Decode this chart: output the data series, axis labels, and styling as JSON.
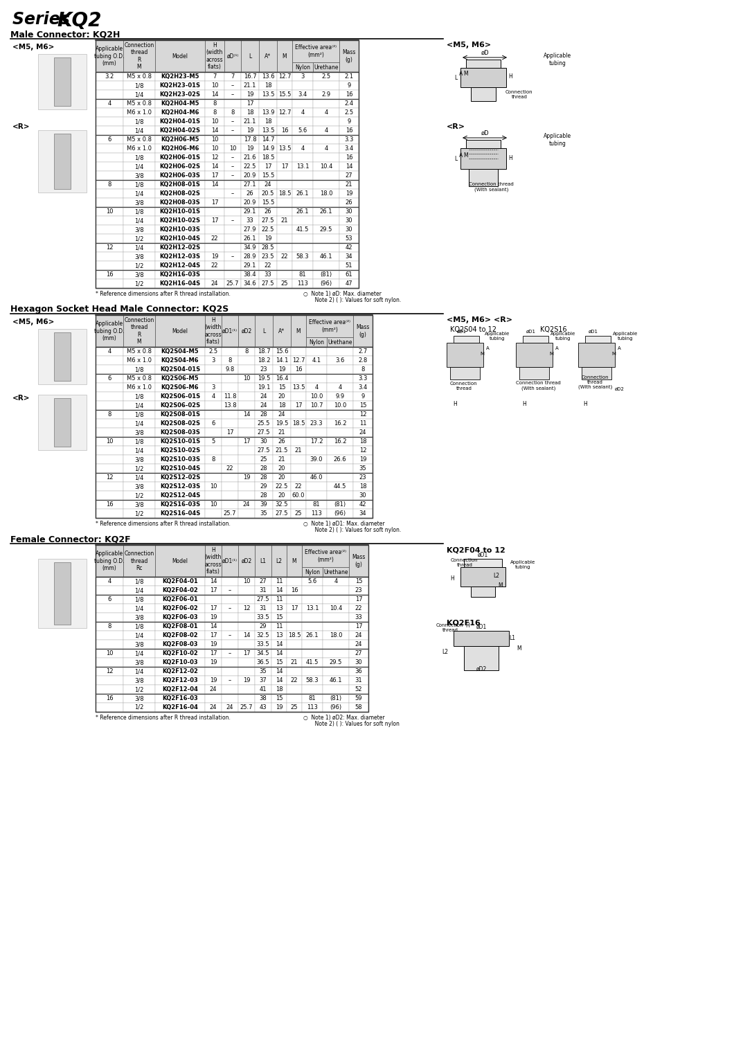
{
  "title_regular": "Series ",
  "title_bold": "KQ2",
  "sections": [
    "Male Connector: KQ2H",
    "Hexagon Socket Head Male Connector: KQ2S",
    "Female Connector: KQ2F"
  ],
  "kq2h_rows": [
    [
      "3.2",
      "M5 x 0.8",
      "KQ2H23-M5",
      "7",
      "7",
      "16.7",
      "13.6",
      "12.7",
      "3",
      "2.5",
      "2.1"
    ],
    [
      "",
      "1/8",
      "KQ2H23-01S",
      "10",
      "–",
      "21.1",
      "18",
      "",
      "",
      "",
      "9"
    ],
    [
      "",
      "1/4",
      "KQ2H23-02S",
      "14",
      "–",
      "19",
      "13.5",
      "15.5",
      "3.4",
      "2.9",
      "16"
    ],
    [
      "4",
      "M5 x 0.8",
      "KQ2H04-M5",
      "8",
      "",
      "17",
      "",
      "",
      "",
      "",
      "2.4"
    ],
    [
      "",
      "M6 x 1.0",
      "KQ2H04-M6",
      "8",
      "8",
      "18",
      "13.9",
      "12.7",
      "4",
      "4",
      "2.5"
    ],
    [
      "",
      "1/8",
      "KQ2H04-01S",
      "10",
      "–",
      "21.1",
      "18",
      "",
      "",
      "",
      "9"
    ],
    [
      "",
      "1/4",
      "KQ2H04-02S",
      "14",
      "–",
      "19",
      "13.5",
      "16",
      "5.6",
      "4",
      "16"
    ],
    [
      "6",
      "M5 x 0.8",
      "KQ2H06-M5",
      "10",
      "",
      "17.8",
      "14.7",
      "",
      "",
      "",
      "3.3"
    ],
    [
      "",
      "M6 x 1.0",
      "KQ2H06-M6",
      "10",
      "10",
      "19",
      "14.9",
      "13.5",
      "4",
      "4",
      "3.4"
    ],
    [
      "",
      "1/8",
      "KQ2H06-01S",
      "12",
      "–",
      "21.6",
      "18.5",
      "",
      "",
      "",
      "16"
    ],
    [
      "",
      "1/4",
      "KQ2H06-02S",
      "14",
      "–",
      "22.5",
      "17",
      "17",
      "13.1",
      "10.4",
      "14"
    ],
    [
      "",
      "3/8",
      "KQ2H06-03S",
      "17",
      "–",
      "20.9",
      "15.5",
      "",
      "",
      "",
      "27"
    ],
    [
      "8",
      "1/8",
      "KQ2H08-01S",
      "14",
      "",
      "27.1",
      "24",
      "",
      "",
      "",
      "21"
    ],
    [
      "",
      "1/4",
      "KQ2H08-02S",
      "",
      "–",
      "26",
      "20.5",
      "18.5",
      "26.1",
      "18.0",
      "19"
    ],
    [
      "",
      "3/8",
      "KQ2H08-03S",
      "17",
      "",
      "20.9",
      "15.5",
      "",
      "",
      "",
      "26"
    ],
    [
      "10",
      "1/8",
      "KQ2H10-01S",
      "",
      "",
      "29.1",
      "26",
      "",
      "26.1",
      "26.1",
      "30"
    ],
    [
      "",
      "1/4",
      "KQ2H10-02S",
      "17",
      "–",
      "33",
      "27.5",
      "21",
      "",
      "",
      "30"
    ],
    [
      "",
      "3/8",
      "KQ2H10-03S",
      "",
      "",
      "27.9",
      "22.5",
      "",
      "41.5",
      "29.5",
      "30"
    ],
    [
      "",
      "1/2",
      "KQ2H10-04S",
      "22",
      "",
      "26.1",
      "19",
      "",
      "",
      "",
      "53"
    ],
    [
      "12",
      "1/4",
      "KQ2H12-02S",
      "",
      "",
      "34.9",
      "28.5",
      "",
      "",
      "",
      "42"
    ],
    [
      "",
      "3/8",
      "KQ2H12-03S",
      "19",
      "–",
      "28.9",
      "23.5",
      "22",
      "58.3",
      "46.1",
      "34"
    ],
    [
      "",
      "1/2",
      "KQ2H12-04S",
      "22",
      "",
      "29.1",
      "22",
      "",
      "",
      "",
      "51"
    ],
    [
      "16",
      "3/8",
      "KQ2H16-03S",
      "",
      "",
      "38.4",
      "33",
      "",
      "81",
      "(81)",
      "61"
    ],
    [
      "",
      "1/2",
      "KQ2H16-04S",
      "24",
      "25.7",
      "34.6",
      "27.5",
      "25",
      "113",
      "(96)",
      "47"
    ]
  ],
  "kq2h_groups": [
    3,
    4,
    5,
    3,
    4,
    3,
    2
  ],
  "kq2s_rows": [
    [
      "4",
      "M5 x 0.8",
      "KQ2S04-M5",
      "2.5",
      "",
      "8",
      "18.7",
      "15.6",
      "",
      "",
      "",
      "2.7"
    ],
    [
      "",
      "M6 x 1.0",
      "KQ2S04-M6",
      "3",
      "8",
      "",
      "18.2",
      "14.1",
      "12.7",
      "4.1",
      "3.6",
      "2.8"
    ],
    [
      "",
      "1/8",
      "KQ2S04-01S",
      "",
      "9.8",
      "",
      "23",
      "19",
      "16",
      "",
      "",
      "8"
    ],
    [
      "6",
      "M5 x 0.8",
      "KQ2S06-M5",
      "",
      "",
      "10",
      "19.5",
      "16.4",
      "",
      "",
      "",
      "3.3"
    ],
    [
      "",
      "M6 x 1.0",
      "KQ2S06-M6",
      "3",
      "",
      "",
      "19.1",
      "15",
      "13.5",
      "4",
      "4",
      "3.4"
    ],
    [
      "",
      "1/8",
      "KQ2S06-01S",
      "4",
      "11.8",
      "",
      "24",
      "20",
      "",
      "10.0",
      "9.9",
      "9"
    ],
    [
      "",
      "1/4",
      "KQ2S06-02S",
      "",
      "13.8",
      "",
      "24",
      "18",
      "17",
      "10.7",
      "10.0",
      "15"
    ],
    [
      "8",
      "1/8",
      "KQ2S08-01S",
      "",
      "",
      "14",
      "28",
      "24",
      "",
      "",
      "",
      "12"
    ],
    [
      "",
      "1/4",
      "KQ2S08-02S",
      "6",
      "",
      "",
      "25.5",
      "19.5",
      "18.5",
      "23.3",
      "16.2",
      "11"
    ],
    [
      "",
      "3/8",
      "KQ2S08-03S",
      "",
      "17",
      "",
      "27.5",
      "21",
      "",
      "",
      "",
      "24"
    ],
    [
      "10",
      "1/8",
      "KQ2S10-01S",
      "5",
      "",
      "17",
      "30",
      "26",
      "",
      "17.2",
      "16.2",
      "18"
    ],
    [
      "",
      "1/4",
      "KQ2S10-02S",
      "",
      "",
      "",
      "27.5",
      "21.5",
      "21",
      "",
      "",
      "12"
    ],
    [
      "",
      "3/8",
      "KQ2S10-03S",
      "8",
      "",
      "",
      "25",
      "21",
      "",
      "39.0",
      "26.6",
      "19"
    ],
    [
      "",
      "1/2",
      "KQ2S10-04S",
      "",
      "22",
      "",
      "28",
      "20",
      "",
      "",
      "",
      "35"
    ],
    [
      "12",
      "1/4",
      "KQ2S12-02S",
      "",
      "",
      "19",
      "28",
      "20",
      "",
      "46.0",
      "",
      "23"
    ],
    [
      "",
      "3/8",
      "KQ2S12-03S",
      "10",
      "",
      "",
      "29",
      "22.5",
      "22",
      "",
      "44.5",
      "18"
    ],
    [
      "",
      "1/2",
      "KQ2S12-04S",
      "",
      "",
      "",
      "28",
      "20",
      "60.0",
      "",
      "",
      "30"
    ],
    [
      "16",
      "3/8",
      "KQ2S16-03S",
      "10",
      "",
      "24",
      "39",
      "32.5",
      "",
      "81",
      "(81)",
      "42"
    ],
    [
      "",
      "1/2",
      "KQ2S16-04S",
      "",
      "25.7",
      "",
      "35",
      "27.5",
      "25",
      "113",
      "(96)",
      "34"
    ]
  ],
  "kq2s_groups": [
    3,
    4,
    3,
    4,
    3,
    2
  ],
  "kq2f_rows": [
    [
      "4",
      "1/8",
      "KQ2F04-01",
      "14",
      "",
      "10",
      "27",
      "11",
      "",
      "5.6",
      "4",
      "15"
    ],
    [
      "",
      "1/4",
      "KQ2F04-02",
      "17",
      "–",
      "",
      "31",
      "14",
      "16",
      "",
      "",
      "23"
    ],
    [
      "6",
      "1/8",
      "KQ2F06-01",
      "",
      "",
      "",
      "27.5",
      "11",
      "",
      "",
      "",
      "17"
    ],
    [
      "",
      "1/4",
      "KQ2F06-02",
      "17",
      "–",
      "12",
      "31",
      "13",
      "17",
      "13.1",
      "10.4",
      "22"
    ],
    [
      "",
      "3/8",
      "KQ2F06-03",
      "19",
      "",
      "",
      "33.5",
      "15",
      "",
      "",
      "",
      "33"
    ],
    [
      "8",
      "1/8",
      "KQ2F08-01",
      "14",
      "",
      "",
      "29",
      "11",
      "",
      "",
      "",
      "17"
    ],
    [
      "",
      "1/4",
      "KQ2F08-02",
      "17",
      "–",
      "14",
      "32.5",
      "13",
      "18.5",
      "26.1",
      "18.0",
      "24"
    ],
    [
      "",
      "3/8",
      "KQ2F08-03",
      "19",
      "",
      "",
      "33.5",
      "14",
      "",
      "",
      "",
      "24"
    ],
    [
      "10",
      "1/4",
      "KQ2F10-02",
      "17",
      "–",
      "17",
      "34.5",
      "14",
      "",
      "",
      "",
      "27"
    ],
    [
      "",
      "3/8",
      "KQ2F10-03",
      "19",
      "",
      "",
      "36.5",
      "15",
      "21",
      "41.5",
      "29.5",
      "30"
    ],
    [
      "12",
      "1/4",
      "KQ2F12-02",
      "",
      "",
      "",
      "35",
      "14",
      "",
      "",
      "",
      "36"
    ],
    [
      "",
      "3/8",
      "KQ2F12-03",
      "19",
      "–",
      "19",
      "37",
      "14",
      "22",
      "58.3",
      "46.1",
      "31"
    ],
    [
      "",
      "1/2",
      "KQ2F12-04",
      "24",
      "",
      "",
      "41",
      "18",
      "",
      "",
      "",
      "52"
    ],
    [
      "16",
      "3/8",
      "KQ2F16-03",
      "",
      "",
      "",
      "38",
      "15",
      "",
      "81",
      "(81)",
      "59"
    ],
    [
      "",
      "1/2",
      "KQ2F16-04",
      "24",
      "24",
      "25.7",
      "43",
      "19",
      "25",
      "113",
      "(96)",
      "58"
    ]
  ],
  "kq2f_groups": [
    2,
    3,
    3,
    2,
    3,
    2
  ]
}
